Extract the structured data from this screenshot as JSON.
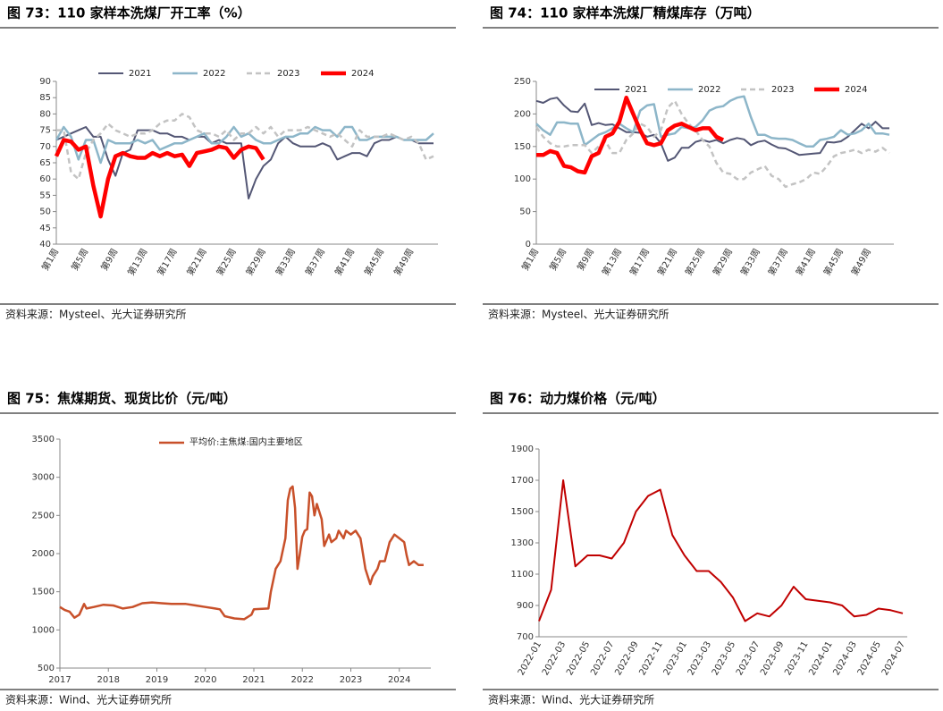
{
  "chart_data": [
    {
      "type": "line",
      "title": "图 73：110 家样本洗煤厂开工率（%）",
      "source": "资料来源：Mysteel、光大证券研究所",
      "categories": [
        "第1周",
        null,
        null,
        null,
        "第5周",
        null,
        null,
        null,
        "第9周",
        null,
        null,
        null,
        "第13周",
        null,
        null,
        null,
        "第17周",
        null,
        null,
        null,
        "第21周",
        null,
        null,
        null,
        "第25周",
        null,
        null,
        null,
        "第29周",
        null,
        null,
        null,
        "第33周",
        null,
        null,
        null,
        "第37周",
        null,
        null,
        null,
        "第41周",
        null,
        null,
        null,
        "第45周",
        null,
        null,
        null,
        "第49周",
        null,
        null,
        null
      ],
      "ylim": [
        40,
        90
      ],
      "yticks": [
        40,
        45,
        50,
        55,
        60,
        65,
        70,
        75,
        80,
        85,
        90
      ],
      "legend": "top",
      "series": [
        {
          "name": "2021",
          "color": "#545775",
          "values": [
            72,
            73,
            74,
            75,
            76,
            73,
            73,
            66,
            61,
            68,
            69,
            75,
            75,
            75,
            74,
            74,
            73,
            73,
            72,
            73,
            73,
            71,
            72,
            71,
            71,
            71,
            54,
            60,
            64,
            66,
            71,
            73,
            71,
            70,
            70,
            70,
            71,
            70,
            66,
            67,
            68,
            68,
            67,
            71,
            72,
            72,
            73,
            72,
            72,
            71,
            71,
            71
          ]
        },
        {
          "name": "2022",
          "color": "#8db6c9",
          "values": [
            72,
            76,
            73,
            66,
            72,
            72,
            65,
            72,
            71,
            71,
            71,
            72,
            71,
            72,
            69,
            70,
            71,
            71,
            72,
            73,
            74,
            71,
            71,
            73,
            76,
            73,
            74,
            72,
            71,
            71,
            72,
            73,
            73,
            74,
            74,
            76,
            75,
            75,
            73,
            76,
            76,
            72,
            72,
            73,
            73,
            73,
            73,
            72,
            72,
            72,
            72,
            74
          ]
        },
        {
          "name": "2023",
          "color": "#c3c3c3",
          "dashed": true,
          "values": [
            75,
            75,
            62,
            60,
            68,
            72,
            74,
            77,
            75,
            74,
            73,
            74,
            74,
            75,
            77,
            78,
            78,
            80,
            79,
            75,
            74,
            74,
            73,
            75,
            72,
            74,
            74,
            76,
            74,
            76,
            73,
            75,
            75,
            75,
            76,
            75,
            74,
            73,
            74,
            72,
            70,
            75,
            73,
            73,
            73,
            74,
            73,
            72,
            73,
            71,
            66,
            67
          ]
        },
        {
          "name": "2024",
          "color": "#ff0000",
          "values": [
            67,
            72,
            71.5,
            69,
            70,
            58,
            48.5,
            60,
            67,
            68,
            67,
            66.5,
            66.5,
            68,
            67,
            68,
            67,
            67.5,
            64,
            68,
            68.5,
            69,
            70,
            69.5,
            66.5,
            69,
            70,
            69.5,
            66,
            null,
            null,
            null,
            null,
            null,
            null,
            null,
            null,
            null,
            null,
            null,
            null,
            null,
            null,
            null,
            null,
            null,
            null,
            null,
            null,
            null,
            null,
            null
          ]
        }
      ]
    },
    {
      "type": "line",
      "title": "图 74：110 家样本洗煤厂精煤库存（万吨）",
      "source": "资料来源：Mysteel、光大证券研究所",
      "categories": [
        "第1周",
        null,
        null,
        null,
        "第5周",
        null,
        null,
        null,
        "第9周",
        null,
        null,
        null,
        "第13周",
        null,
        null,
        null,
        "第17周",
        null,
        null,
        null,
        "第21周",
        null,
        null,
        null,
        "第25周",
        null,
        null,
        null,
        "第29周",
        null,
        null,
        null,
        "第33周",
        null,
        null,
        null,
        "第37周",
        null,
        null,
        null,
        "第41周",
        null,
        null,
        null,
        "第45周",
        null,
        null,
        null,
        "第49周",
        null,
        null,
        null
      ],
      "ylim": [
        0,
        250
      ],
      "yticks": [
        0,
        50,
        100,
        150,
        200,
        250
      ],
      "legend": "top",
      "series": [
        {
          "name": "2021",
          "color": "#545775",
          "values": [
            220,
            217,
            223,
            225,
            213,
            204,
            203,
            216,
            183,
            186,
            183,
            184,
            178,
            172,
            172,
            171,
            165,
            168,
            155,
            128,
            133,
            148,
            148,
            157,
            160,
            157,
            160,
            155,
            160,
            163,
            161,
            152,
            157,
            159,
            153,
            148,
            147,
            142,
            137,
            138,
            139,
            140,
            157,
            156,
            158,
            165,
            175,
            185,
            178,
            188,
            178,
            178
          ]
        },
        {
          "name": "2022",
          "color": "#8db6c9",
          "values": [
            185,
            175,
            168,
            187,
            187,
            185,
            185,
            152,
            160,
            168,
            172,
            178,
            185,
            178,
            172,
            205,
            213,
            215,
            165,
            168,
            170,
            180,
            178,
            180,
            190,
            205,
            210,
            212,
            220,
            225,
            227,
            195,
            168,
            168,
            163,
            162,
            162,
            160,
            155,
            150,
            150,
            160,
            162,
            165,
            175,
            168,
            170,
            175,
            185,
            170,
            170,
            168
          ]
        },
        {
          "name": "2023",
          "color": "#c3c3c3",
          "dashed": true,
          "values": [
            180,
            165,
            155,
            150,
            150,
            152,
            152,
            152,
            140,
            150,
            158,
            140,
            140,
            160,
            170,
            185,
            180,
            165,
            175,
            210,
            220,
            200,
            185,
            175,
            160,
            150,
            125,
            110,
            108,
            100,
            100,
            110,
            115,
            120,
            105,
            100,
            88,
            92,
            95,
            100,
            110,
            108,
            120,
            135,
            140,
            142,
            145,
            140,
            145,
            142,
            148,
            140
          ]
        },
        {
          "name": "2024",
          "color": "#ff0000",
          "values": [
            137,
            137,
            143,
            140,
            120,
            118,
            112,
            110,
            135,
            140,
            165,
            170,
            188,
            225,
            200,
            175,
            155,
            152,
            155,
            175,
            182,
            185,
            180,
            175,
            178,
            178,
            165,
            160,
            null,
            null,
            null,
            null,
            null,
            null,
            null,
            null,
            null,
            null,
            null,
            null,
            null,
            null,
            null,
            null,
            null,
            null,
            null,
            null,
            null,
            null,
            null,
            null
          ]
        }
      ]
    },
    {
      "type": "line",
      "title": "图 75：焦煤期货、现货比价（元/吨）",
      "source": "资料来源：Wind、光大证券研究所",
      "xlim": [
        2017,
        2024.65
      ],
      "xticks": [
        2017,
        2018,
        2019,
        2020,
        2021,
        2022,
        2023,
        2024
      ],
      "ylim": [
        500,
        3500
      ],
      "yticks": [
        500,
        1000,
        1500,
        2000,
        2500,
        3000,
        3500
      ],
      "legend": "top",
      "x": [
        2017.0,
        2017.1,
        2017.2,
        2017.3,
        2017.4,
        2017.5,
        2017.55,
        2017.7,
        2017.9,
        2018.1,
        2018.3,
        2018.5,
        2018.7,
        2018.9,
        2019.1,
        2019.3,
        2019.6,
        2019.8,
        2020.0,
        2020.2,
        2020.3,
        2020.4,
        2020.6,
        2020.8,
        2020.95,
        2021.0,
        2021.3,
        2021.35,
        2021.45,
        2021.55,
        2021.65,
        2021.7,
        2021.75,
        2021.8,
        2021.85,
        2021.9,
        2021.95,
        2022.0,
        2022.05,
        2022.1,
        2022.15,
        2022.2,
        2022.25,
        2022.3,
        2022.4,
        2022.45,
        2022.55,
        2022.6,
        2022.7,
        2022.75,
        2022.85,
        2022.9,
        2023.0,
        2023.1,
        2023.2,
        2023.3,
        2023.4,
        2023.45,
        2023.55,
        2023.6,
        2023.7,
        2023.8,
        2023.9,
        2024.0,
        2024.1,
        2024.15,
        2024.2,
        2024.3,
        2024.4,
        2024.5
      ],
      "series": [
        {
          "name": "平均价:主焦煤:国内主要地区",
          "color": "#c8502a",
          "values": [
            1300,
            1260,
            1240,
            1160,
            1200,
            1340,
            1280,
            1300,
            1330,
            1320,
            1280,
            1300,
            1350,
            1360,
            1350,
            1340,
            1340,
            1320,
            1300,
            1280,
            1270,
            1180,
            1150,
            1140,
            1200,
            1270,
            1280,
            1500,
            1800,
            1900,
            2200,
            2700,
            2850,
            2880,
            2600,
            1800,
            2000,
            2220,
            2300,
            2320,
            2800,
            2750,
            2500,
            2650,
            2450,
            2100,
            2250,
            2150,
            2200,
            2300,
            2200,
            2300,
            2250,
            2300,
            2200,
            1800,
            1600,
            1700,
            1800,
            1900,
            1900,
            2150,
            2250,
            2200,
            2150,
            1980,
            1850,
            1900,
            1850,
            1850
          ]
        }
      ]
    },
    {
      "type": "line",
      "title": "图 76：动力煤价格（元/吨）",
      "source": "资料来源：Wind、光大证券研究所",
      "categories": [
        "2022-01",
        null,
        "2022-03",
        null,
        "2022-05",
        null,
        "2022-07",
        null,
        "2022-09",
        null,
        "2022-11",
        null,
        "2023-01",
        null,
        "2023-03",
        null,
        "2023-05",
        null,
        "2023-07",
        null,
        "2023-09",
        null,
        "2023-11",
        null,
        "2024-01",
        null,
        "2024-03",
        null,
        "2024-05",
        null,
        "2024-07"
      ],
      "ylim": [
        700,
        1900
      ],
      "yticks": [
        700,
        900,
        1100,
        1300,
        1500,
        1700,
        1900
      ],
      "series": [
        {
          "color": "#c00000",
          "values": [
            800,
            1000,
            1700,
            1150,
            1220,
            1220,
            1200,
            1300,
            1500,
            1600,
            1640,
            1350,
            1220,
            1120,
            1120,
            1050,
            950,
            800,
            850,
            830,
            900,
            1020,
            940,
            930,
            920,
            900,
            830,
            840,
            880,
            870,
            850
          ]
        }
      ]
    }
  ]
}
